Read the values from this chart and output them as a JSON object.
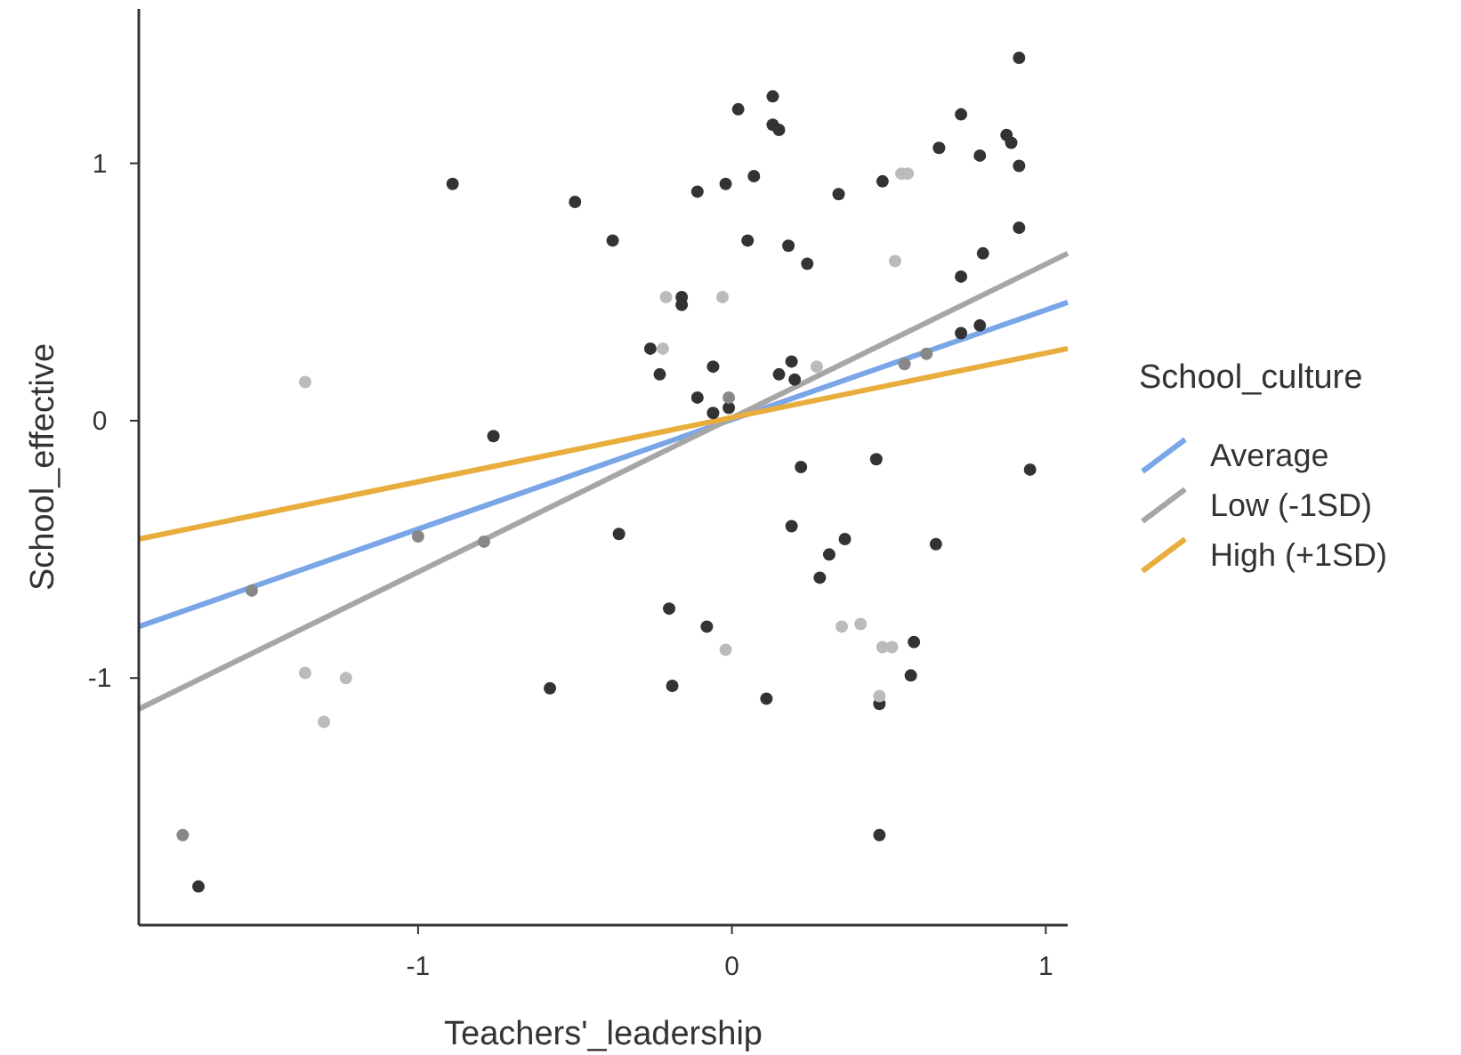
{
  "chart_data": {
    "type": "scatter",
    "xlabel": "Teachers'_leadership",
    "ylabel": "School_effective",
    "legend_title": "School_culture",
    "xlim": [
      -1.89,
      1.07
    ],
    "ylim": [
      -1.96,
      1.6
    ],
    "xticks": [
      -1,
      0,
      1
    ],
    "yticks": [
      -1,
      0,
      1
    ],
    "grid": false,
    "legend": "right",
    "marker": "circle",
    "series": [
      {
        "color": "#333333",
        "x": [
          -0.89,
          -0.5,
          -0.38,
          -0.76,
          -0.36,
          -0.58,
          -1.7,
          0.02,
          0.13,
          0.13,
          0.15,
          -0.11,
          -0.02,
          0.07,
          0.05,
          0.18,
          0.24,
          0.34,
          0.48,
          0.66,
          0.73,
          0.79,
          0.875,
          0.89,
          0.915,
          0.915,
          0.915,
          0.8,
          0.73,
          -0.16,
          -0.16,
          -0.26,
          -0.23,
          -0.06,
          0.19,
          0.15,
          0.2,
          -0.11,
          -0.01,
          -0.06,
          0.73,
          0.79,
          0.22,
          0.46,
          0.95,
          0.19,
          0.36,
          0.31,
          0.28,
          0.65,
          -0.2,
          -0.08,
          -0.19,
          0.11,
          0.58,
          0.57,
          0.47,
          0.47
        ],
        "values": [
          0.92,
          0.85,
          0.7,
          -0.06,
          -0.44,
          -1.04,
          -1.81,
          1.21,
          1.26,
          1.15,
          1.13,
          0.89,
          0.92,
          0.95,
          0.7,
          0.68,
          0.61,
          0.88,
          0.93,
          1.06,
          1.19,
          1.03,
          1.11,
          1.08,
          1.41,
          0.99,
          0.75,
          0.65,
          0.56,
          0.48,
          0.45,
          0.28,
          0.18,
          0.21,
          0.23,
          0.18,
          0.16,
          0.09,
          0.05,
          0.03,
          0.34,
          0.37,
          -0.18,
          -0.15,
          -0.19,
          -0.41,
          -0.46,
          -0.52,
          -0.61,
          -0.48,
          -0.73,
          -0.8,
          -1.03,
          -1.08,
          -0.86,
          -0.99,
          -1.1,
          -1.61
        ]
      },
      {
        "color": "#888888",
        "x": [
          -1.0,
          -1.53,
          -0.79,
          -1.75,
          0.55,
          0.62,
          -0.01
        ],
        "values": [
          -0.45,
          -0.66,
          -0.47,
          -1.61,
          0.22,
          0.26,
          0.09
        ]
      },
      {
        "color": "#bbbbbb",
        "x": [
          -1.36,
          -1.36,
          -1.23,
          -1.3,
          0.54,
          0.56,
          0.52,
          -0.21,
          -0.03,
          -0.22,
          0.27,
          -0.02,
          0.35,
          0.41,
          0.48,
          0.51,
          0.47
        ],
        "values": [
          0.15,
          -0.98,
          -1.0,
          -1.17,
          0.96,
          0.96,
          0.62,
          0.48,
          0.48,
          0.28,
          0.21,
          -0.89,
          -0.8,
          -0.79,
          -0.88,
          -0.88,
          -1.07
        ]
      },
      {
        "type": "line",
        "marker": "none",
        "name": "Average",
        "color": "#7aa6e8",
        "x": [
          -1.89,
          1.07
        ],
        "values": [
          -0.8,
          0.46
        ]
      },
      {
        "type": "line",
        "marker": "none",
        "name": "Low (-1SD)",
        "color": "#a6a6a6",
        "x": [
          -1.89,
          1.07
        ],
        "values": [
          -1.12,
          0.65
        ]
      },
      {
        "type": "line",
        "marker": "none",
        "name": "High (+1SD)",
        "color": "#e8ad3c",
        "x": [
          -1.89,
          1.07
        ],
        "values": [
          -0.46,
          0.28
        ]
      }
    ]
  }
}
